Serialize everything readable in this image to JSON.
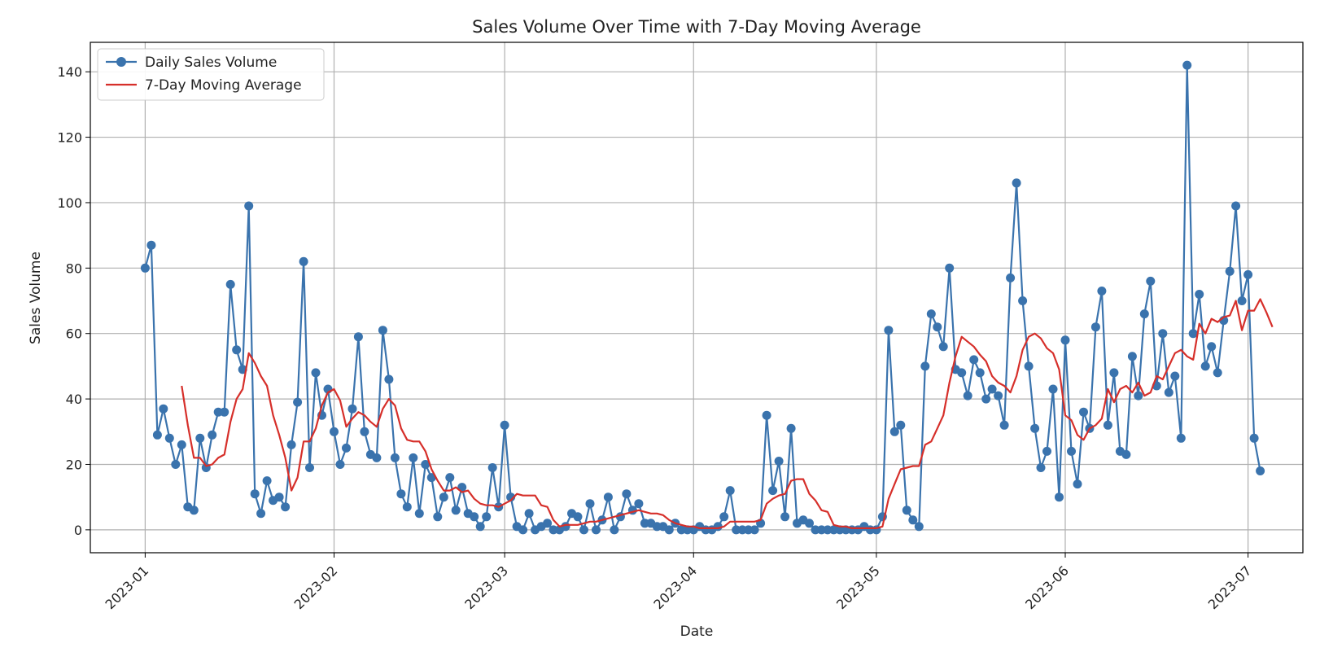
{
  "chart_data": {
    "type": "line",
    "title": "Sales Volume Over Time with 7-Day Moving Average",
    "xlabel": "Date",
    "ylabel": "Sales Volume",
    "x_start": "2023-01-01",
    "x_end": "2023-07-01",
    "xlim": [
      "2022-12-23",
      "2023-07-10"
    ],
    "ylim": [
      -7,
      149
    ],
    "x_ticks": [
      "2023-01",
      "2023-02",
      "2023-03",
      "2023-04",
      "2023-05",
      "2023-06",
      "2023-07"
    ],
    "y_ticks": [
      0,
      20,
      40,
      60,
      80,
      100,
      120,
      140
    ],
    "grid": true,
    "legend_position": "top-left",
    "colors": {
      "daily": "#3a73ad",
      "moving_average": "#d62f2a",
      "grid": "#b0b0b0"
    },
    "series": [
      {
        "name": "Daily Sales Volume",
        "marker": "circle",
        "values": [
          80,
          87,
          29,
          37,
          28,
          20,
          26,
          7,
          6,
          28,
          19,
          29,
          36,
          36,
          75,
          55,
          49,
          99,
          11,
          5,
          15,
          9,
          10,
          7,
          26,
          39,
          82,
          19,
          48,
          35,
          43,
          30,
          20,
          25,
          37,
          59,
          30,
          23,
          22,
          61,
          46,
          22,
          11,
          7,
          22,
          5,
          20,
          16,
          4,
          10,
          16,
          6,
          13,
          5,
          4,
          1,
          4,
          19,
          7,
          32,
          10,
          1,
          0,
          5,
          0,
          1,
          2,
          0,
          0,
          1,
          5,
          4,
          0,
          8,
          0,
          3,
          10,
          0,
          4,
          11,
          6,
          8,
          2,
          2,
          1,
          1,
          0,
          2,
          0,
          0,
          0,
          1,
          0,
          0,
          1,
          4,
          12,
          0,
          0,
          0,
          0,
          2,
          35,
          12,
          21,
          4,
          31,
          2,
          3,
          2,
          0,
          0,
          0,
          0,
          0,
          0,
          0,
          0,
          1,
          0,
          0,
          4,
          61,
          30,
          32,
          6,
          3,
          1,
          50,
          66,
          62,
          56,
          80,
          49,
          48,
          41,
          52,
          48,
          40,
          43,
          41,
          32,
          77,
          106,
          70,
          50,
          31,
          19,
          24,
          43,
          10,
          58,
          24,
          14,
          36,
          31,
          62,
          73,
          32,
          48,
          24,
          23,
          53,
          41,
          66,
          76,
          44,
          60,
          42,
          47,
          28,
          142,
          60,
          72,
          50,
          56,
          48,
          64,
          79,
          99,
          70,
          78,
          28,
          18
        ]
      },
      {
        "name": "7-Day Moving Average",
        "marker": "none",
        "values": [
          null,
          null,
          null,
          null,
          null,
          null,
          44,
          32,
          22,
          22,
          19.5,
          20,
          22,
          23,
          33,
          40,
          43,
          54,
          51,
          47,
          44,
          35,
          29,
          22,
          12,
          16,
          27,
          27,
          31,
          38,
          42,
          43,
          39.5,
          31.5,
          34,
          36,
          35,
          33,
          31.5,
          37,
          40,
          38,
          31,
          27.5,
          27,
          27,
          24,
          18.5,
          15,
          12,
          12,
          13,
          11.5,
          12,
          9.5,
          8,
          7.5,
          7.5,
          7,
          8,
          9,
          11,
          10.5,
          10.5,
          10.5,
          7.5,
          7,
          3,
          1,
          1.5,
          1.5,
          1.5,
          2,
          2.5,
          2.5,
          3,
          3.5,
          4,
          4.5,
          5,
          5.5,
          6,
          5.5,
          5,
          5,
          4.5,
          3,
          2,
          1.5,
          1,
          1,
          0.5,
          0.5,
          0.5,
          0.5,
          1,
          2.5,
          2.5,
          2.5,
          2.5,
          2.5,
          3,
          8,
          9.5,
          10.5,
          11,
          15,
          15.5,
          15.5,
          11,
          9,
          6,
          5.5,
          1.5,
          1,
          1,
          0.5,
          0.5,
          0.5,
          0.5,
          0.5,
          1,
          9.5,
          14,
          18.5,
          19,
          19.5,
          19.5,
          26,
          27,
          31,
          35,
          45,
          53,
          59,
          57.5,
          56,
          53.5,
          51.5,
          47,
          45,
          44,
          42,
          47,
          55,
          59,
          60,
          58.5,
          55.5,
          54,
          49,
          35,
          33.5,
          29,
          27.5,
          31,
          32,
          34,
          43,
          39,
          43,
          44,
          42,
          45,
          41,
          42,
          47,
          46,
          50,
          54,
          55,
          53,
          52,
          63,
          60,
          64.5,
          63.5,
          65,
          65.5,
          70,
          61,
          67,
          67,
          70.5,
          66.5,
          62
        ]
      }
    ]
  }
}
